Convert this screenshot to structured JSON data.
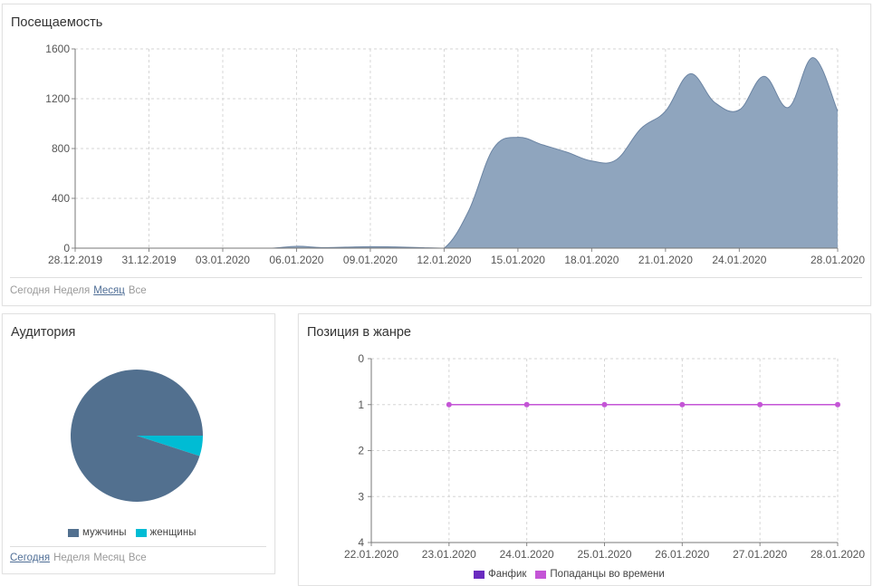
{
  "visits": {
    "title": "Посещаемость",
    "period_tabs": [
      {
        "label": "Сегодня",
        "active": false
      },
      {
        "label": "Неделя",
        "active": false
      },
      {
        "label": "Месяц",
        "active": true
      },
      {
        "label": "Все",
        "active": false
      }
    ]
  },
  "audience": {
    "title": "Аудитория",
    "period_tabs": [
      {
        "label": "Сегодня",
        "active": true
      },
      {
        "label": "Неделя",
        "active": false
      },
      {
        "label": "Месяц",
        "active": false
      },
      {
        "label": "Все",
        "active": false
      }
    ]
  },
  "genre_position": {
    "title": "Позиция в жанре"
  },
  "chart_data": [
    {
      "type": "area",
      "title": "Посещаемость",
      "xlabel": "",
      "ylabel": "",
      "ylim": [
        0,
        1600
      ],
      "yticks": [
        0,
        400,
        800,
        1200,
        1600
      ],
      "xticks": [
        "28.12.2019",
        "31.12.2019",
        "03.01.2020",
        "06.01.2020",
        "09.01.2020",
        "12.01.2020",
        "15.01.2020",
        "18.01.2020",
        "21.01.2020",
        "24.01.2020",
        "28.01.2020"
      ],
      "grid": true,
      "color": "#8fa5be",
      "x": [
        "28.12.2019",
        "29.12.2019",
        "30.12.2019",
        "31.12.2019",
        "01.01.2020",
        "02.01.2020",
        "03.01.2020",
        "04.01.2020",
        "05.01.2020",
        "06.01.2020",
        "07.01.2020",
        "08.01.2020",
        "09.01.2020",
        "10.01.2020",
        "11.01.2020",
        "12.01.2020",
        "13.01.2020",
        "14.01.2020",
        "15.01.2020",
        "16.01.2020",
        "17.01.2020",
        "18.01.2020",
        "19.01.2020",
        "20.01.2020",
        "21.01.2020",
        "22.01.2020",
        "23.01.2020",
        "24.01.2020",
        "25.01.2020",
        "26.01.2020",
        "27.01.2020",
        "28.01.2020"
      ],
      "values": [
        0,
        0,
        0,
        0,
        0,
        0,
        0,
        0,
        0,
        15,
        5,
        8,
        12,
        10,
        5,
        0,
        300,
        800,
        890,
        830,
        770,
        700,
        710,
        960,
        1100,
        1400,
        1170,
        1110,
        1380,
        1130,
        1530,
        1100
      ]
    },
    {
      "type": "pie",
      "title": "Аудитория",
      "categories": [
        "мужчины",
        "женщины"
      ],
      "values": [
        95,
        5
      ],
      "colors": [
        "#52708f",
        "#00bcd4"
      ],
      "legend": "bottom"
    },
    {
      "type": "line",
      "title": "Позиция в жанре",
      "xlabel": "",
      "ylabel": "",
      "ylim": [
        0,
        4
      ],
      "y_inverted": true,
      "yticks": [
        0,
        1,
        2,
        3,
        4
      ],
      "xticks": [
        "22.01.2020",
        "23.01.2020",
        "24.01.2020",
        "25.01.2020",
        "26.01.2020",
        "27.01.2020",
        "28.01.2020"
      ],
      "grid": true,
      "legend": "bottom",
      "series": [
        {
          "name": "Фанфик",
          "color": "#6a2bbf",
          "x": [],
          "values": []
        },
        {
          "name": "Попаданцы во времени",
          "color": "#c455d6",
          "x": [
            "23.01.2020",
            "24.01.2020",
            "25.01.2020",
            "26.01.2020",
            "27.01.2020",
            "28.01.2020"
          ],
          "values": [
            1,
            1,
            1,
            1,
            1,
            1
          ]
        }
      ]
    }
  ]
}
